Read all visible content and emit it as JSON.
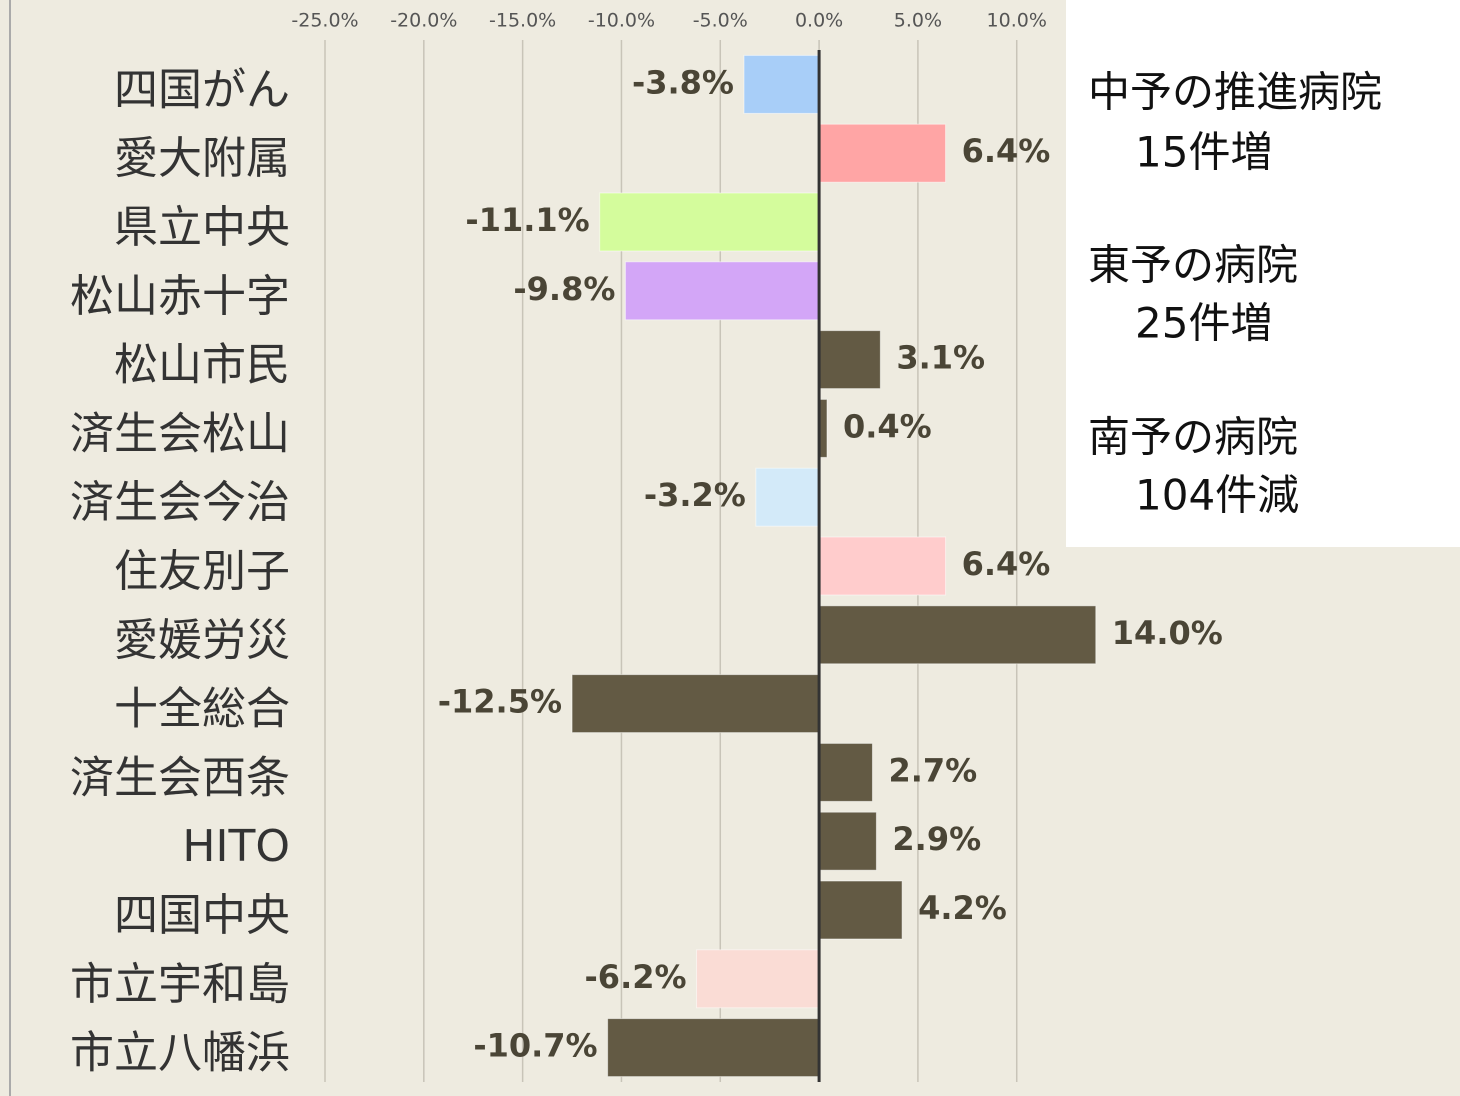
{
  "chart_data": {
    "type": "hbar",
    "categories": [
      "四国がん",
      "愛大附属",
      "県立中央",
      "松山赤十字",
      "松山市民",
      "済生会松山",
      "済生会今治",
      "住友別子",
      "愛媛労災",
      "十全総合",
      "済生会西条",
      "HITO",
      "四国中央",
      "市立宇和島",
      "市立八幡浜"
    ],
    "values": [
      -3.8,
      6.4,
      -11.1,
      -9.8,
      3.1,
      0.4,
      -3.2,
      6.4,
      14.0,
      -12.5,
      2.7,
      2.9,
      4.2,
      -6.2,
      -10.7
    ],
    "value_labels": [
      "-3.8%",
      "6.4%",
      "-11.1%",
      "-9.8%",
      "3.1%",
      "0.4%",
      "-3.2%",
      "6.4%",
      "14.0%",
      "-12.5%",
      "2.7%",
      "2.9%",
      "4.2%",
      "-6.2%",
      "-10.7%"
    ],
    "colors": [
      "#a8cef8",
      "#ffa5a5",
      "#d4fc9c",
      "#d3a6f7",
      "#635a44",
      "#635a44",
      "#d3eaf9",
      "#ffcccc",
      "#635a44",
      "#635a44",
      "#635a44",
      "#635a44",
      "#635a44",
      "#fadcd5",
      "#635a44"
    ],
    "xlim": [
      -25,
      30
    ],
    "xticks": [
      {
        "value": -25,
        "label": "-25.0%"
      },
      {
        "value": -20,
        "label": "-20.0%"
      },
      {
        "value": -15,
        "label": "-15.0%"
      },
      {
        "value": -10,
        "label": "-10.0%"
      },
      {
        "value": -5,
        "label": "-5.0%"
      },
      {
        "value": 0,
        "label": "0.0%"
      },
      {
        "value": 5,
        "label": "5.0%"
      },
      {
        "value": 10,
        "label": "10.0%"
      }
    ],
    "grid": true,
    "annotations": [
      "中予の推進病院",
      "15件増",
      "東予の病院",
      "25件増",
      "南予の病院",
      "104件減"
    ]
  }
}
